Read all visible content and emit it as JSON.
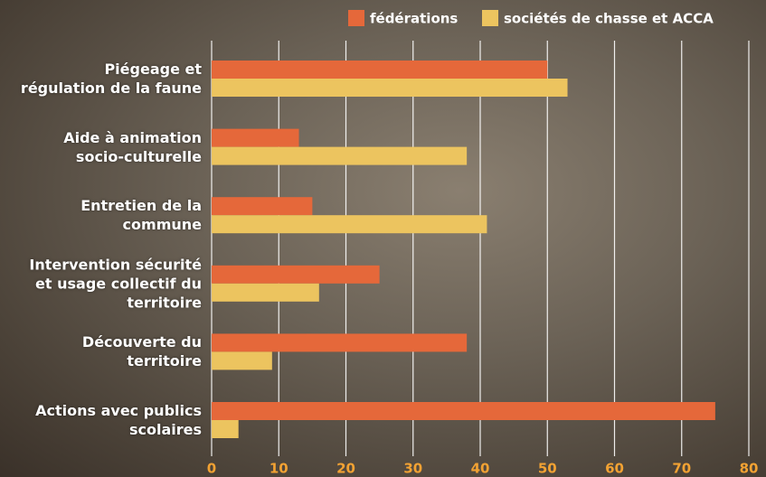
{
  "chart_data": {
    "type": "barh",
    "categories": [
      "Piégeage et régulation de la faune",
      "Aide à animation socio-culturelle",
      "Entretien de la commune",
      "Intervention sécurité et usage collectif du territoire",
      "Découverte du territoire",
      "Actions avec publics scolaires"
    ],
    "series": [
      {
        "name": "fédérations",
        "color": "#e5683a",
        "values": [
          50,
          13,
          15,
          25,
          38,
          75
        ]
      },
      {
        "name": "sociétés de chasse et ACCA",
        "color": "#ecc45f",
        "values": [
          53,
          38,
          41,
          16,
          9,
          4
        ]
      }
    ],
    "xlim": [
      0,
      80
    ],
    "xticks": [
      0,
      10,
      20,
      30,
      40,
      50,
      60,
      70,
      80
    ],
    "grid": true,
    "legend": "top"
  }
}
